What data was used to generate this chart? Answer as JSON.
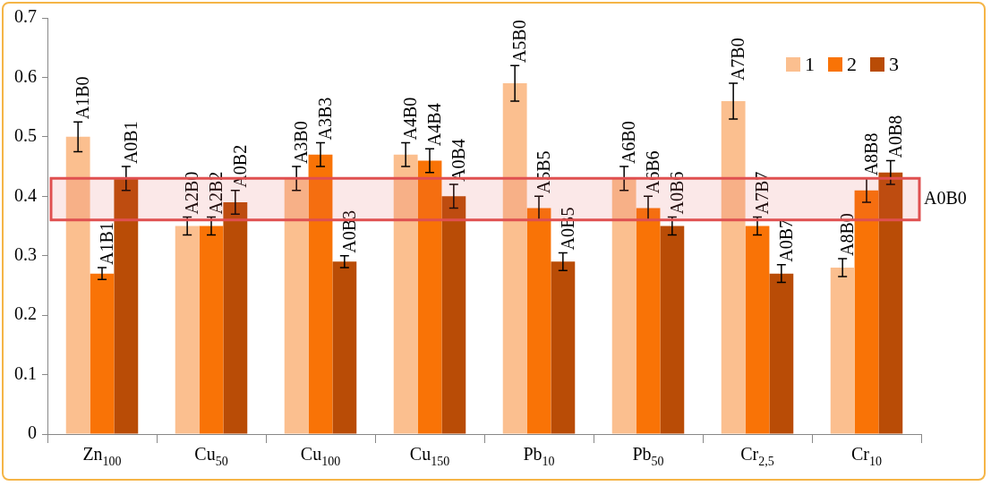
{
  "chart_data": {
    "type": "bar",
    "categories": [
      "Zn$_{100}$",
      "Cu$_{50}$",
      "Cu$_{100}$",
      "Cu$_{150}$",
      "Pb$_{10}$",
      "Pb$_{50}$",
      "Cr$_{2,5}$",
      "Cr$_{10}$"
    ],
    "series": [
      {
        "name": "1",
        "color": "#fbbf8f",
        "values": [
          0.5,
          0.35,
          0.43,
          0.47,
          0.59,
          0.43,
          0.56,
          0.28
        ],
        "errors": [
          0.025,
          0.015,
          0.02,
          0.02,
          0.03,
          0.02,
          0.03,
          0.015
        ],
        "value_labels": [
          "A1B0",
          "A2B0",
          "A3B0",
          "A4B0",
          "A5B0",
          "A6B0",
          "A7B0",
          "A8B0"
        ]
      },
      {
        "name": "2",
        "color": "#f97306",
        "values": [
          0.27,
          0.35,
          0.47,
          0.46,
          0.38,
          0.38,
          0.35,
          0.41
        ],
        "errors": [
          0.01,
          0.015,
          0.02,
          0.02,
          0.02,
          0.02,
          0.015,
          0.02
        ],
        "value_labels": [
          "A1B1",
          "A2B2",
          "A3B3",
          "A4B4",
          "A5B5",
          "A6B6",
          "A7B7",
          "A8B8"
        ]
      },
      {
        "name": "3",
        "color": "#b94c06",
        "values": [
          0.43,
          0.39,
          0.29,
          0.4,
          0.29,
          0.35,
          0.27,
          0.44
        ],
        "errors": [
          0.02,
          0.02,
          0.01,
          0.02,
          0.015,
          0.015,
          0.015,
          0.02
        ],
        "value_labels": [
          "A0B1",
          "A0B2",
          "A0B3",
          "A0B4",
          "A0B5",
          "A0B6",
          "A0B7",
          "A0B8"
        ]
      }
    ],
    "ylim": [
      0,
      0.7
    ],
    "yticks": [
      0,
      0.1,
      0.2,
      0.3,
      0.4,
      0.5,
      0.6,
      0.7
    ],
    "bands": [
      {
        "axis": "y",
        "from": 0.36,
        "to": 0.43,
        "label": "A0B0",
        "color": "#e05050"
      }
    ],
    "grid": false,
    "legend": "top right"
  }
}
